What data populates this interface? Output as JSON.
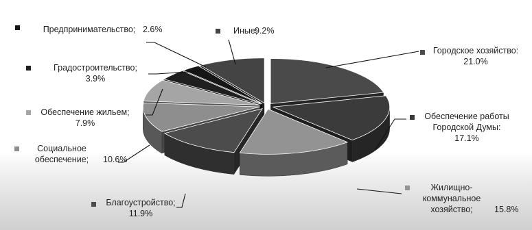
{
  "chart_data": {
    "type": "pie",
    "style": "3d-exploded",
    "title": "",
    "legend": "none",
    "series": [
      {
        "label": "Городское хозяйство",
        "value": 21.0,
        "value_label": "21.0%",
        "color": "#4a4a4a"
      },
      {
        "label": "Обеспечение работы Городской Думы",
        "value": 17.1,
        "value_label": "17.1%",
        "color": "#3b3b3b"
      },
      {
        "label": "Жилищно-коммунальное хозяйство",
        "value": 15.8,
        "value_label": "15.8%",
        "color": "#939393"
      },
      {
        "label": "Благоустройство",
        "value": 11.9,
        "value_label": "11.9%",
        "color": "#4c4c4c"
      },
      {
        "label": "Социальное обеспечение",
        "value": 10.6,
        "value_label": "10.6%",
        "color": "#8e8e8e"
      },
      {
        "label": "Обеспечение жильем",
        "value": 7.9,
        "value_label": "7.9%",
        "color": "#a5a5a5"
      },
      {
        "label": "Градостроительство",
        "value": 3.9,
        "value_label": "3.9%",
        "color": "#1f1f1f"
      },
      {
        "label": "Предпринимательство",
        "value": 2.6,
        "value_label": "2.6%",
        "color": "#161616"
      },
      {
        "label": "Иные",
        "value": 9.2,
        "value_label": "9.2%",
        "color": "#444444"
      }
    ]
  }
}
